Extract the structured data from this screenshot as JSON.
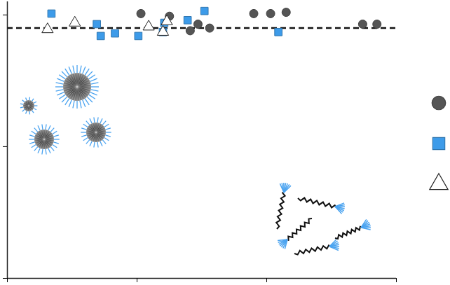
{
  "chart_data": {
    "type": "scatter",
    "xlim": [
      0,
      3
    ],
    "xticks": [
      0,
      1,
      2,
      3
    ],
    "ylim": [
      0,
      2.1
    ],
    "yticks": [
      0,
      1,
      2
    ],
    "tick_labels": false,
    "legend": "right",
    "reference_y": 1.9,
    "series": [
      {
        "color": "#555555",
        "marker": "circle",
        "x": [
          1.03,
          1.25,
          1.41,
          1.47,
          1.56,
          1.9,
          2.03,
          2.15,
          2.74,
          2.85
        ],
        "values": [
          2.01,
          1.99,
          1.88,
          1.93,
          1.9,
          2.01,
          2.01,
          2.02,
          1.93,
          1.93
        ]
      },
      {
        "color": "#3d9be9",
        "marker": "square",
        "x": [
          0.34,
          0.69,
          0.72,
          0.83,
          1.01,
          1.21,
          1.2,
          1.39,
          1.52,
          2.09
        ],
        "values": [
          2.01,
          1.93,
          1.84,
          1.86,
          1.84,
          1.94,
          1.87,
          1.96,
          2.03,
          1.87
        ]
      },
      {
        "color": "#ffffff",
        "marker": "triangle",
        "x": [
          0.31,
          0.52,
          1.09,
          1.23,
          1.2
        ],
        "values": [
          1.89,
          1.94,
          1.91,
          1.95,
          1.87
        ]
      }
    ]
  }
}
